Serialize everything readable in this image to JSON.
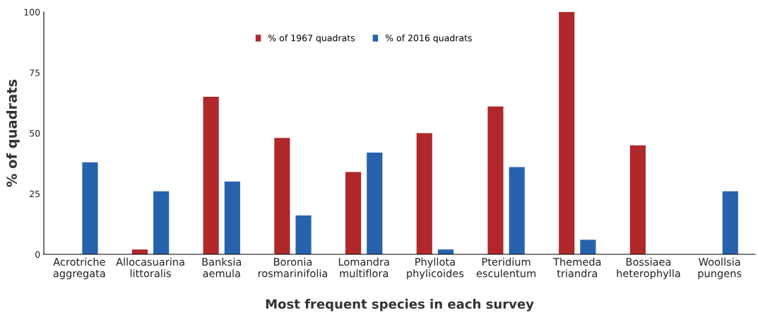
{
  "chart_data": {
    "type": "bar",
    "xlabel": "Most frequent species in each survey",
    "ylabel": "% of quadrats",
    "categories": [
      "Acrotriche\naggregata",
      "Allocasuarina\nlittoralis",
      "Banksia\naemula",
      "Boronia\nrosmarinifolia",
      "Lomandra\nmultiflora",
      "Phyllota\nphylicoides",
      "Pteridium\nesculentum",
      "Themeda\ntriandra",
      "Bossiaea\nheterophylla",
      "Woollsia\npungens"
    ],
    "series": [
      {
        "name": "% of 1967 quadrats",
        "color": "#b0282a",
        "values": [
          0,
          2,
          65,
          48,
          34,
          50,
          61,
          100,
          45,
          0
        ]
      },
      {
        "name": "% of 2016 quadrats",
        "color": "#2763ad",
        "values": [
          38,
          26,
          30,
          16,
          42,
          2,
          36,
          6,
          0,
          26
        ]
      }
    ],
    "ylim": [
      0,
      100
    ],
    "yticks": [
      0,
      25,
      50,
      75,
      100
    ],
    "grid": false,
    "legend": "top"
  }
}
